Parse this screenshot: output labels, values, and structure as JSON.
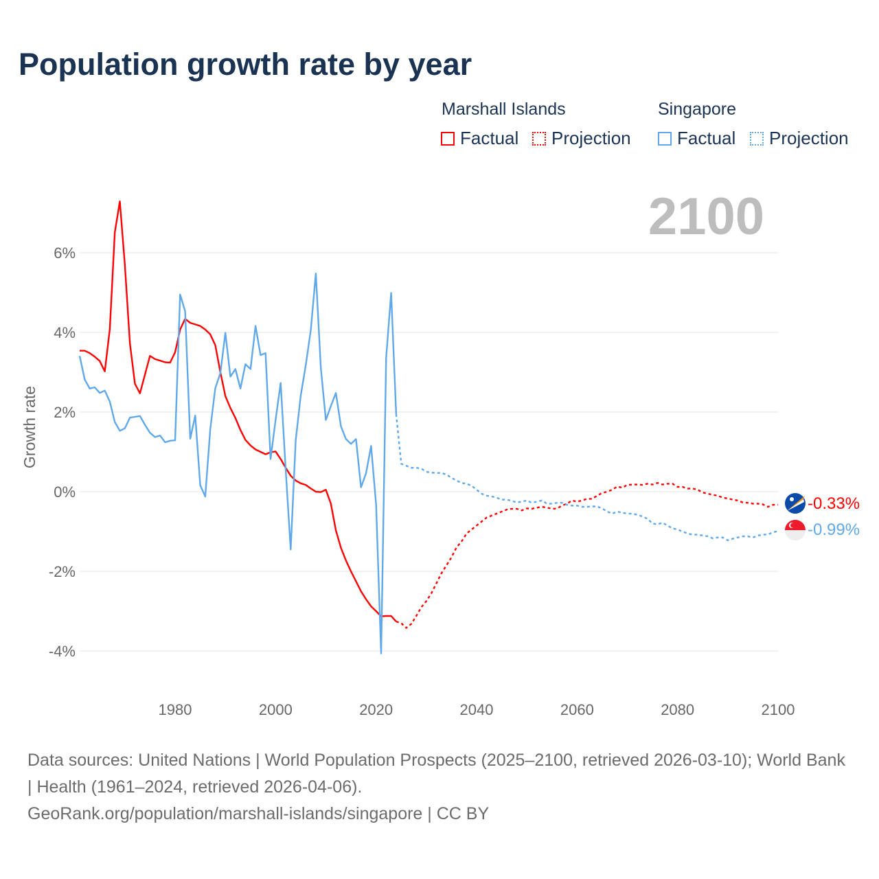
{
  "title": "Population growth rate by year",
  "legend": {
    "groups": [
      {
        "name": "Marshall Islands",
        "factual": "Factual",
        "projection": "Projection",
        "color": "#ff0000"
      },
      {
        "name": "Singapore",
        "factual": "Factual",
        "projection": "Projection",
        "color": "#5fa8ea"
      }
    ]
  },
  "current_year": "2100",
  "end_labels": {
    "marshall_islands": "-0.33%",
    "singapore": "-0.99%"
  },
  "flags": {
    "marshall_islands": "marshall-islands-flag-icon",
    "singapore": "singapore-flag-icon"
  },
  "footer": {
    "line1": "Data sources: United Nations | World Population Prospects (2025–2100, retrieved 2026-03-10); World Bank | Health (1961–2024, retrieved 2026-04-06).",
    "line2": "GeoRank.org/population/marshall-islands/singapore | CC BY"
  },
  "chart_data": {
    "type": "line",
    "title": "Population growth rate by year",
    "xlabel": "",
    "ylabel": "Growth rate",
    "xlim": [
      1961,
      2100
    ],
    "ylim": [
      -5,
      7
    ],
    "x_ticks": [
      "1980",
      "2000",
      "2020",
      "2040",
      "2060",
      "2080",
      "2100"
    ],
    "y_ticks": [
      {
        "v": -4,
        "label": "-4%"
      },
      {
        "v": -2,
        "label": "-2%"
      },
      {
        "v": 0,
        "label": "0%"
      },
      {
        "v": 2,
        "label": "2%"
      },
      {
        "v": 4,
        "label": "4%"
      },
      {
        "v": 6,
        "label": "6%"
      }
    ],
    "grid": true,
    "legend_position": "top-right",
    "series": [
      {
        "name": "Marshall Islands",
        "kind": "factual",
        "start_year": 1961,
        "color": "#ff0000",
        "values": [
          3.54,
          3.54,
          3.48,
          3.39,
          3.28,
          3.02,
          4.08,
          6.51,
          7.29,
          5.7,
          3.72,
          2.71,
          2.47,
          2.94,
          3.41,
          3.33,
          3.29,
          3.25,
          3.24,
          3.5,
          4.07,
          4.34,
          4.24,
          4.2,
          4.16,
          4.07,
          3.95,
          3.68,
          3.0,
          2.4,
          2.1,
          1.85,
          1.55,
          1.3,
          1.16,
          1.06,
          1.0,
          0.94,
          0.99,
          1.01,
          0.82,
          0.6,
          0.4,
          0.28,
          0.21,
          0.17,
          0.08,
          0.0,
          -0.01,
          0.05,
          -0.3,
          -0.97,
          -1.41,
          -1.73,
          -2.0,
          -2.25,
          -2.5,
          -2.7,
          -2.88,
          -3.0,
          -3.13,
          -3.12,
          -3.12,
          -3.26
        ]
      },
      {
        "name": "Marshall Islands",
        "kind": "projection",
        "start_year": 2024,
        "color": "#ff0000",
        "values": [
          -3.26,
          -3.3,
          -3.42,
          -3.32,
          -3.12,
          -2.9,
          -2.75,
          -2.55,
          -2.3,
          -2.05,
          -1.85,
          -1.65,
          -1.4,
          -1.25,
          -1.05,
          -0.95,
          -0.85,
          -0.75,
          -0.65,
          -0.6,
          -0.55,
          -0.5,
          -0.45,
          -0.43,
          -0.43,
          -0.47,
          -0.42,
          -0.43,
          -0.4,
          -0.38,
          -0.4,
          -0.43,
          -0.42,
          -0.35,
          -0.3,
          -0.22,
          -0.25,
          -0.22,
          -0.18,
          -0.18,
          -0.1,
          -0.03,
          0.0,
          0.05,
          0.13,
          0.1,
          0.17,
          0.18,
          0.18,
          0.17,
          0.2,
          0.18,
          0.22,
          0.18,
          0.2,
          0.2,
          0.12,
          0.12,
          0.08,
          0.08,
          0.05,
          -0.02,
          -0.05,
          -0.08,
          -0.1,
          -0.15,
          -0.17,
          -0.2,
          -0.22,
          -0.27,
          -0.28,
          -0.3,
          -0.3,
          -0.32,
          -0.38,
          -0.33,
          -0.33
        ]
      },
      {
        "name": "Singapore",
        "kind": "factual",
        "start_year": 1961,
        "color": "#5fa8ea",
        "values": [
          3.41,
          2.82,
          2.59,
          2.62,
          2.48,
          2.54,
          2.26,
          1.75,
          1.53,
          1.59,
          1.86,
          1.88,
          1.9,
          1.68,
          1.48,
          1.37,
          1.41,
          1.24,
          1.28,
          1.29,
          4.95,
          4.53,
          1.33,
          1.91,
          0.16,
          -0.12,
          1.57,
          2.6,
          2.98,
          3.99,
          2.89,
          3.08,
          2.59,
          3.2,
          3.08,
          4.16,
          3.43,
          3.48,
          0.82,
          1.8,
          2.73,
          0.56,
          -1.45,
          1.29,
          2.41,
          3.17,
          4.06,
          5.48,
          3.11,
          1.8,
          2.15,
          2.48,
          1.64,
          1.32,
          1.2,
          1.32,
          0.11,
          0.46,
          1.15,
          -0.33,
          -4.06,
          3.36,
          4.99,
          1.95
        ]
      },
      {
        "name": "Singapore",
        "kind": "projection",
        "start_year": 2024,
        "color": "#5fa8ea",
        "values": [
          1.95,
          0.7,
          0.65,
          0.6,
          0.6,
          0.58,
          0.5,
          0.48,
          0.47,
          0.47,
          0.43,
          0.35,
          0.28,
          0.22,
          0.2,
          0.15,
          0.05,
          -0.05,
          -0.1,
          -0.12,
          -0.15,
          -0.2,
          -0.2,
          -0.23,
          -0.27,
          -0.25,
          -0.22,
          -0.28,
          -0.25,
          -0.22,
          -0.3,
          -0.3,
          -0.28,
          -0.28,
          -0.33,
          -0.35,
          -0.35,
          -0.38,
          -0.38,
          -0.37,
          -0.37,
          -0.42,
          -0.5,
          -0.55,
          -0.5,
          -0.53,
          -0.55,
          -0.55,
          -0.58,
          -0.62,
          -0.68,
          -0.8,
          -0.82,
          -0.78,
          -0.85,
          -0.92,
          -0.95,
          -1.0,
          -1.05,
          -1.08,
          -1.08,
          -1.1,
          -1.12,
          -1.17,
          -1.15,
          -1.15,
          -1.22,
          -1.18,
          -1.15,
          -1.12,
          -1.12,
          -1.15,
          -1.1,
          -1.08,
          -1.07,
          -1.02,
          -0.99
        ]
      }
    ]
  }
}
